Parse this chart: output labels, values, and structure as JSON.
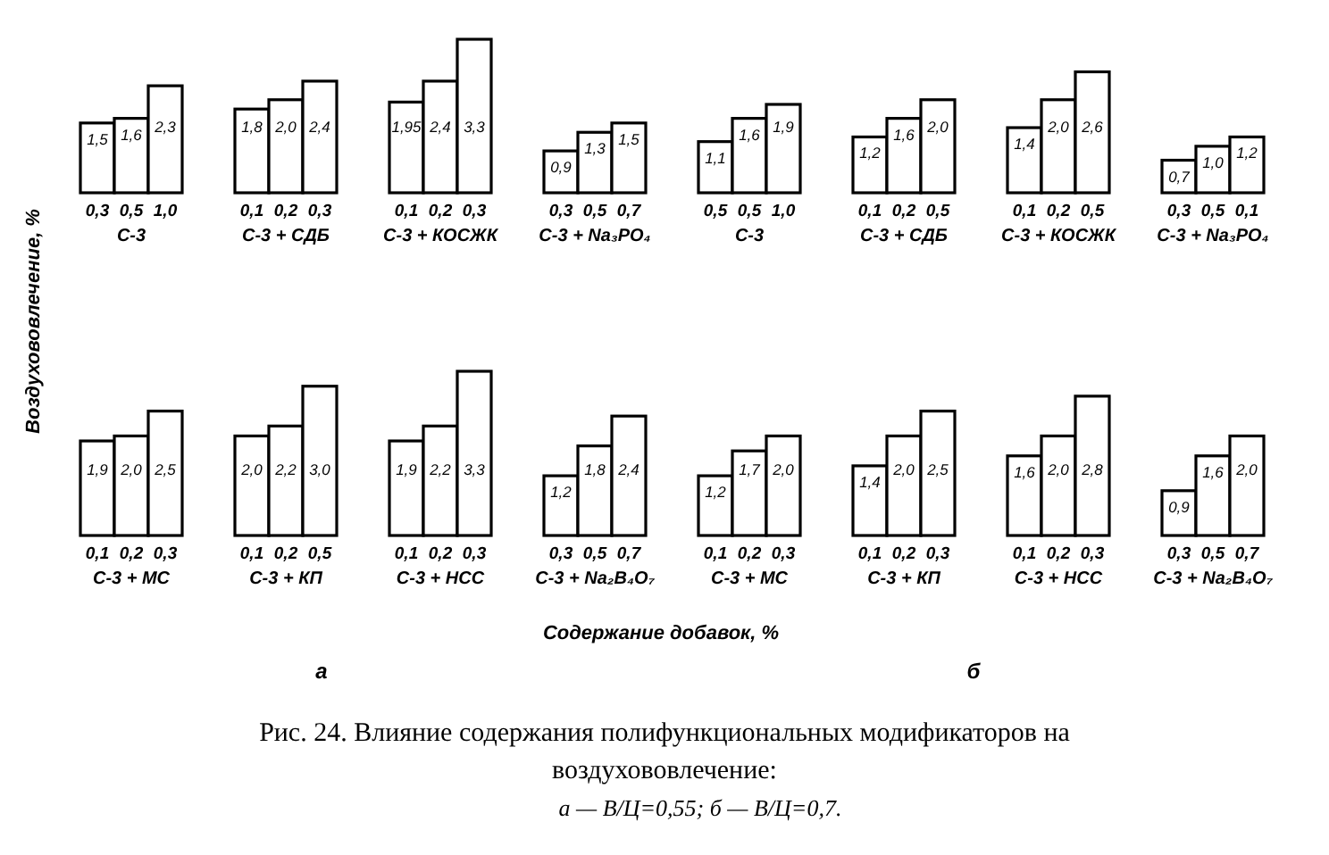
{
  "chart_data": [
    {
      "type": "bar",
      "ylabel": "Воздухововлечение, %",
      "xlabel": "С-3",
      "categories": [
        "0,3",
        "0,5",
        "1,0"
      ],
      "values": [
        1.5,
        1.6,
        2.3
      ],
      "color": "#ffffff",
      "value_labels": [
        "1,5",
        "1,6",
        "2,3"
      ]
    },
    {
      "type": "bar",
      "xlabel": "С-3 + СДБ",
      "categories": [
        "0,1",
        "0,2",
        "0,3"
      ],
      "values": [
        1.8,
        2.0,
        2.4
      ],
      "color": "#ffffff",
      "value_labels": [
        "1,8",
        "2,0",
        "2,4"
      ]
    },
    {
      "type": "bar",
      "xlabel": "С-3 + КОСЖК",
      "categories": [
        "0,1",
        "0,2",
        "0,3"
      ],
      "values": [
        1.95,
        2.4,
        3.3
      ],
      "color": "#ffffff",
      "value_labels": [
        "1,95",
        "2,4",
        "3,3"
      ]
    },
    {
      "type": "bar",
      "xlabel": "С-3 + Na₃PO₄",
      "categories": [
        "0,3",
        "0,5",
        "0,7"
      ],
      "values": [
        0.9,
        1.3,
        1.5
      ],
      "color": "#ffffff",
      "value_labels": [
        "0,9",
        "1,3",
        "1,5"
      ]
    },
    {
      "type": "bar",
      "xlabel": "С-3",
      "categories": [
        "0,5",
        "0,5",
        "1,0"
      ],
      "values": [
        1.1,
        1.6,
        1.9
      ],
      "color": "#ffffff",
      "value_labels": [
        "1,1",
        "1,6",
        "1,9"
      ]
    },
    {
      "type": "bar",
      "xlabel": "С-3 + СДБ",
      "categories": [
        "0,1",
        "0,2",
        "0,5"
      ],
      "values": [
        1.2,
        1.6,
        2.0
      ],
      "color": "#ffffff",
      "value_labels": [
        "1,2",
        "1,6",
        "2,0"
      ]
    },
    {
      "type": "bar",
      "xlabel": "С-3 + КОСЖК",
      "categories": [
        "0,1",
        "0,2",
        "0,5"
      ],
      "values": [
        1.4,
        2.0,
        2.6
      ],
      "color": "#ffffff",
      "value_labels": [
        "1,4",
        "2,0",
        "2,6"
      ]
    },
    {
      "type": "bar",
      "xlabel": "С-3 + Na₃PO₄",
      "categories": [
        "0,3",
        "0,5",
        "0,1"
      ],
      "values": [
        0.7,
        1.0,
        1.2
      ],
      "color": "#ffffff",
      "value_labels": [
        "0,7",
        "1,0",
        "1,2"
      ]
    },
    {
      "type": "bar",
      "xlabel": "С-3 + МС",
      "categories": [
        "0,1",
        "0,2",
        "0,3"
      ],
      "values": [
        1.9,
        2.0,
        2.5
      ],
      "color": "#ffffff",
      "value_labels": [
        "1,9",
        "2,0",
        "2,5"
      ]
    },
    {
      "type": "bar",
      "xlabel": "С-3 + КП",
      "categories": [
        "0,1",
        "0,2",
        "0,5"
      ],
      "values": [
        2.0,
        2.2,
        3.0
      ],
      "color": "#ffffff",
      "value_labels": [
        "2,0",
        "2,2",
        "3,0"
      ]
    },
    {
      "type": "bar",
      "xlabel": "С-3 + НСС",
      "categories": [
        "0,1",
        "0,2",
        "0,3"
      ],
      "values": [
        1.9,
        2.2,
        3.3
      ],
      "color": "#ffffff",
      "value_labels": [
        "1,9",
        "2,2",
        "3,3"
      ]
    },
    {
      "type": "bar",
      "xlabel": "С-3 + Na₂B₄O₇",
      "categories": [
        "0,3",
        "0,5",
        "0,7"
      ],
      "values": [
        1.2,
        1.8,
        2.4
      ],
      "color": "#ffffff",
      "value_labels": [
        "1,2",
        "1,8",
        "2,4"
      ]
    },
    {
      "type": "bar",
      "xlabel": "С-3 + МС",
      "categories": [
        "0,1",
        "0,2",
        "0,3"
      ],
      "values": [
        1.2,
        1.7,
        2.0
      ],
      "color": "#ffffff",
      "value_labels": [
        "1,2",
        "1,7",
        "2,0"
      ]
    },
    {
      "type": "bar",
      "xlabel": "С-3 + КП",
      "categories": [
        "0,1",
        "0,2",
        "0,3"
      ],
      "values": [
        1.4,
        2.0,
        2.5
      ],
      "color": "#ffffff",
      "value_labels": [
        "1,4",
        "2,0",
        "2,5"
      ]
    },
    {
      "type": "bar",
      "xlabel": "С-3 + НСС",
      "categories": [
        "0,1",
        "0,2",
        "0,3"
      ],
      "values": [
        1.6,
        2.0,
        2.8
      ],
      "color": "#ffffff",
      "value_labels": [
        "1,6",
        "2,0",
        "2,8"
      ]
    },
    {
      "type": "bar",
      "xlabel": "С-3 + Na₂B₄O₇",
      "categories": [
        "0,3",
        "0,5",
        "0,7"
      ],
      "values": [
        0.9,
        1.6,
        2.0
      ],
      "color": "#ffffff",
      "value_labels": [
        "0,9",
        "1,6",
        "2,0"
      ]
    },
    {
      "type": "other",
      "title": "Рис. 24. Влияние содержания полифункциональных модификаторов на воздухововлечение:",
      "subtitle": "а — В/Ц=0,55; б — В/Ц=0,7.",
      "annotations": [
        "Содержание добавок, %",
        "а",
        "б"
      ]
    }
  ]
}
